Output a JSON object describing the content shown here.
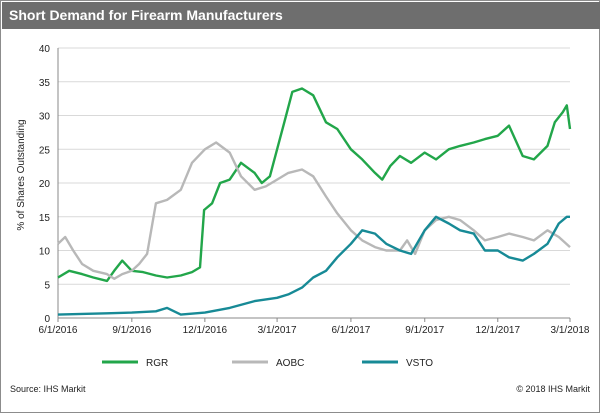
{
  "title": "Short Demand for Firearm Manufacturers",
  "source": "Source: IHS Markit",
  "copyright": "© 2018 IHS Markit",
  "colors": {
    "RGR": "#22a64a",
    "AOBC": "#b8b8b8",
    "VSTO": "#178a96",
    "header": "#6e6e6e",
    "grid": "#d9d9d9"
  },
  "chart_data": {
    "type": "line",
    "title": "Short Demand for Firearm Manufacturers",
    "xlabel": "",
    "ylabel": "% of Shares Outstanding",
    "ylim": [
      0,
      40
    ],
    "yticks": [
      "0",
      "5",
      "10",
      "15",
      "20",
      "25",
      "30",
      "35",
      "40"
    ],
    "xlim": [
      "2016-06-01",
      "2018-03-01"
    ],
    "xticks": [
      "6/1/2016",
      "9/1/2016",
      "12/1/2016",
      "3/1/2017",
      "6/1/2017",
      "9/1/2017",
      "12/1/2017",
      "3/1/2018"
    ],
    "grid": true,
    "legend": "bottom",
    "series": [
      {
        "name": "RGR",
        "points": [
          [
            "2016-06-01",
            6.0
          ],
          [
            "2016-06-15",
            7.0
          ],
          [
            "2016-07-01",
            6.5
          ],
          [
            "2016-07-15",
            6.0
          ],
          [
            "2016-08-01",
            5.5
          ],
          [
            "2016-08-10",
            7.0
          ],
          [
            "2016-08-20",
            8.5
          ],
          [
            "2016-09-01",
            7.0
          ],
          [
            "2016-09-15",
            6.8
          ],
          [
            "2016-10-01",
            6.3
          ],
          [
            "2016-10-15",
            6.0
          ],
          [
            "2016-11-01",
            6.3
          ],
          [
            "2016-11-15",
            6.8
          ],
          [
            "2016-11-25",
            7.5
          ],
          [
            "2016-11-30",
            16.0
          ],
          [
            "2016-12-10",
            17.0
          ],
          [
            "2016-12-20",
            20.0
          ],
          [
            "2017-01-01",
            20.5
          ],
          [
            "2017-01-15",
            23.0
          ],
          [
            "2017-02-01",
            21.5
          ],
          [
            "2017-02-10",
            20.0
          ],
          [
            "2017-02-20",
            21.0
          ],
          [
            "2017-03-01",
            25.0
          ],
          [
            "2017-03-10",
            29.0
          ],
          [
            "2017-03-20",
            33.5
          ],
          [
            "2017-04-01",
            34.0
          ],
          [
            "2017-04-15",
            33.0
          ],
          [
            "2017-05-01",
            29.0
          ],
          [
            "2017-05-15",
            28.0
          ],
          [
            "2017-06-01",
            25.0
          ],
          [
            "2017-06-15",
            23.5
          ],
          [
            "2017-07-01",
            21.5
          ],
          [
            "2017-07-10",
            20.5
          ],
          [
            "2017-07-20",
            22.5
          ],
          [
            "2017-08-01",
            24.0
          ],
          [
            "2017-08-15",
            23.0
          ],
          [
            "2017-09-01",
            24.5
          ],
          [
            "2017-09-15",
            23.5
          ],
          [
            "2017-10-01",
            25.0
          ],
          [
            "2017-10-15",
            25.5
          ],
          [
            "2017-11-01",
            26.0
          ],
          [
            "2017-11-15",
            26.5
          ],
          [
            "2017-12-01",
            27.0
          ],
          [
            "2017-12-15",
            28.5
          ],
          [
            "2018-01-01",
            24.0
          ],
          [
            "2018-01-15",
            23.5
          ],
          [
            "2018-02-01",
            25.5
          ],
          [
            "2018-02-10",
            29.0
          ],
          [
            "2018-02-20",
            30.5
          ],
          [
            "2018-02-25",
            31.5
          ],
          [
            "2018-03-01",
            28.0
          ]
        ]
      },
      {
        "name": "AOBC",
        "points": [
          [
            "2016-06-01",
            11.0
          ],
          [
            "2016-06-10",
            12.0
          ],
          [
            "2016-06-20",
            10.0
          ],
          [
            "2016-07-01",
            8.0
          ],
          [
            "2016-07-15",
            7.0
          ],
          [
            "2016-08-01",
            6.5
          ],
          [
            "2016-08-10",
            5.8
          ],
          [
            "2016-08-20",
            6.5
          ],
          [
            "2016-09-01",
            7.0
          ],
          [
            "2016-09-10",
            8.0
          ],
          [
            "2016-09-20",
            9.5
          ],
          [
            "2016-10-01",
            17.0
          ],
          [
            "2016-10-15",
            17.5
          ],
          [
            "2016-11-01",
            19.0
          ],
          [
            "2016-11-15",
            23.0
          ],
          [
            "2016-12-01",
            25.0
          ],
          [
            "2016-12-15",
            26.0
          ],
          [
            "2017-01-01",
            24.5
          ],
          [
            "2017-01-15",
            21.0
          ],
          [
            "2017-02-01",
            19.0
          ],
          [
            "2017-02-15",
            19.5
          ],
          [
            "2017-03-01",
            20.5
          ],
          [
            "2017-03-15",
            21.5
          ],
          [
            "2017-04-01",
            22.0
          ],
          [
            "2017-04-15",
            21.0
          ],
          [
            "2017-05-01",
            18.0
          ],
          [
            "2017-05-15",
            15.5
          ],
          [
            "2017-06-01",
            13.0
          ],
          [
            "2017-06-15",
            11.5
          ],
          [
            "2017-07-01",
            10.5
          ],
          [
            "2017-07-15",
            10.0
          ],
          [
            "2017-08-01",
            10.0
          ],
          [
            "2017-08-10",
            11.5
          ],
          [
            "2017-08-20",
            9.5
          ],
          [
            "2017-09-01",
            13.0
          ],
          [
            "2017-09-15",
            14.5
          ],
          [
            "2017-10-01",
            15.0
          ],
          [
            "2017-10-15",
            14.5
          ],
          [
            "2017-11-01",
            13.0
          ],
          [
            "2017-11-15",
            11.5
          ],
          [
            "2017-12-01",
            12.0
          ],
          [
            "2017-12-15",
            12.5
          ],
          [
            "2018-01-01",
            12.0
          ],
          [
            "2018-01-15",
            11.5
          ],
          [
            "2018-02-01",
            13.0
          ],
          [
            "2018-02-15",
            12.0
          ],
          [
            "2018-03-01",
            10.5
          ]
        ]
      },
      {
        "name": "VSTO",
        "points": [
          [
            "2016-06-01",
            0.5
          ],
          [
            "2016-07-01",
            0.6
          ],
          [
            "2016-08-01",
            0.7
          ],
          [
            "2016-09-01",
            0.8
          ],
          [
            "2016-10-01",
            1.0
          ],
          [
            "2016-10-15",
            1.5
          ],
          [
            "2016-11-01",
            0.5
          ],
          [
            "2016-12-01",
            0.8
          ],
          [
            "2017-01-01",
            1.5
          ],
          [
            "2017-02-01",
            2.5
          ],
          [
            "2017-03-01",
            3.0
          ],
          [
            "2017-03-15",
            3.5
          ],
          [
            "2017-04-01",
            4.5
          ],
          [
            "2017-04-15",
            6.0
          ],
          [
            "2017-05-01",
            7.0
          ],
          [
            "2017-05-15",
            9.0
          ],
          [
            "2017-06-01",
            11.0
          ],
          [
            "2017-06-15",
            13.0
          ],
          [
            "2017-07-01",
            12.5
          ],
          [
            "2017-07-15",
            11.0
          ],
          [
            "2017-08-01",
            10.0
          ],
          [
            "2017-08-15",
            9.5
          ],
          [
            "2017-09-01",
            13.0
          ],
          [
            "2017-09-15",
            15.0
          ],
          [
            "2017-10-01",
            14.0
          ],
          [
            "2017-10-15",
            13.0
          ],
          [
            "2017-11-01",
            12.5
          ],
          [
            "2017-11-15",
            10.0
          ],
          [
            "2017-12-01",
            10.0
          ],
          [
            "2017-12-15",
            9.0
          ],
          [
            "2018-01-01",
            8.5
          ],
          [
            "2018-01-15",
            9.5
          ],
          [
            "2018-02-01",
            11.0
          ],
          [
            "2018-02-15",
            14.0
          ],
          [
            "2018-02-25",
            15.0
          ],
          [
            "2018-03-01",
            15.0
          ]
        ]
      }
    ]
  }
}
